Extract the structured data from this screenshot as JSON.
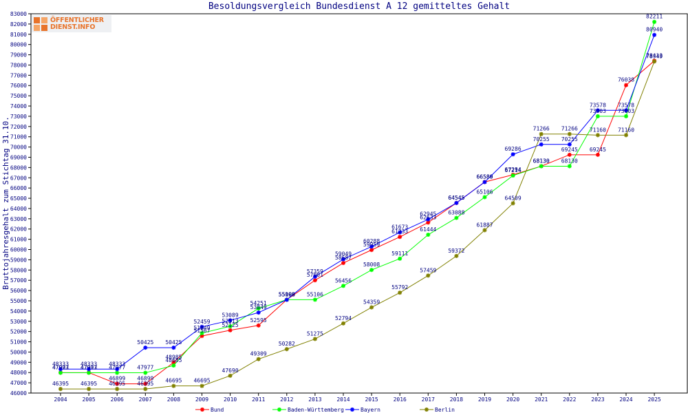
{
  "title": "Besoldungsvergleich Bundesdienst A 12 gemitteltes Gehalt",
  "logo": {
    "line1": "ÖFFENTLICHER",
    "line2": "DIENST.INFO"
  },
  "colors": {
    "Bund": "#ff0000",
    "Baden-Württemberg": "#00ff00",
    "Bayern": "#0000ff",
    "Berlin": "#808000",
    "text": "#000080"
  },
  "chart_data": {
    "type": "line",
    "title": "Besoldungsvergleich Bundesdienst A 12 gemitteltes Gehalt",
    "xlabel": "",
    "ylabel": "Bruttojahresgehalt zum Stichtag 31.10.",
    "ylim": [
      46000,
      83000
    ],
    "ytick_step": 1000,
    "grid": false,
    "legend_position": "bottom",
    "x": [
      "2004",
      "2005",
      "2006",
      "2007",
      "2008",
      "2009",
      "2010",
      "2011",
      "2012",
      "2013",
      "2014",
      "2015",
      "2016",
      "2017",
      "2018",
      "2019",
      "2020",
      "2021",
      "2022",
      "2023",
      "2024",
      "2025"
    ],
    "series": [
      {
        "name": "Bund",
        "color": "#ff0000",
        "values": [
          47993,
          47993,
          46899,
          46899,
          48985,
          51567,
          52125,
          52595,
          55109,
          57001,
          58687,
          59959,
          61233,
          62633,
          64545,
          66589,
          67294,
          68130,
          69245,
          69245,
          76038,
          78413
        ]
      },
      {
        "name": "Baden-Württemberg",
        "color": "#00ff00",
        "values": [
          47977,
          47977,
          47977,
          47977,
          48685,
          51849,
          52513,
          54251,
          55106,
          55106,
          56456,
          58008,
          59111,
          61444,
          63088,
          65106,
          67214,
          68130,
          68130,
          73003,
          73003,
          82211
        ]
      },
      {
        "name": "Bayern",
        "color": "#0000ff",
        "values": [
          48333,
          48333,
          48333,
          50425,
          50425,
          52459,
          53089,
          53849,
          55098,
          57359,
          59049,
          60288,
          61673,
          62945,
          64545,
          66580,
          69286,
          70255,
          70255,
          73578,
          73578,
          80940
        ]
      },
      {
        "name": "Berlin",
        "color": "#808000",
        "values": [
          46395,
          46395,
          46395,
          46395,
          46695,
          46695,
          47690,
          49309,
          50282,
          51275,
          52794,
          54359,
          55792,
          57459,
          59372,
          61887,
          64509,
          71266,
          71266,
          71160,
          71160,
          78349
        ]
      }
    ]
  }
}
